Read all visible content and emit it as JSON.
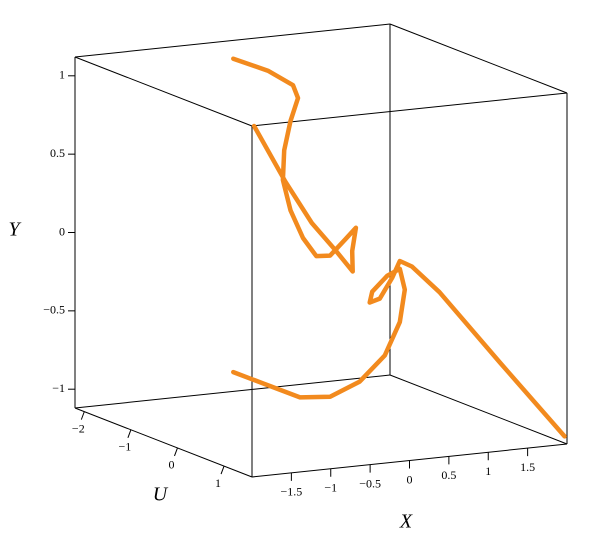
{
  "chart_data": {
    "type": "line3d",
    "xlabel": "X",
    "ylabel": "Y",
    "zlabel": "U",
    "color": "#f28a1e",
    "x": [
      -0.7,
      -0.42,
      -0.22,
      -0.18,
      -0.24,
      -0.29,
      -0.3,
      -0.24,
      -0.14,
      -0.03,
      0.08,
      0.2,
      0.29,
      0.26,
      0.26,
      0.12,
      -0.07,
      -0.28,
      -0.53,
      null,
      -0.7,
      -0.41,
      -0.16,
      0.08,
      0.32,
      0.52,
      0.64,
      0.68,
      0.64,
      0.54,
      0.42,
      0.4,
      0.48,
      0.58,
      0.64,
      0.74,
      0.96,
      1.45,
      1.97
    ],
    "y": [
      1.18,
      1.12,
      1.04,
      0.96,
      0.81,
      0.62,
      0.43,
      0.24,
      0.07,
      -0.04,
      -0.03,
      0.08,
      0.16,
      0.01,
      -0.12,
      0.01,
      0.17,
      0.42,
      0.76,
      null,
      -0.82,
      -0.89,
      -0.95,
      -0.93,
      -0.82,
      -0.64,
      -0.42,
      -0.21,
      -0.08,
      -0.13,
      -0.24,
      -0.31,
      -0.28,
      -0.14,
      -0.03,
      -0.06,
      -0.21,
      -0.63,
      -1.07
    ],
    "z": [
      -1.0,
      -0.73,
      -0.53,
      -0.49,
      -0.55,
      -0.6,
      -0.61,
      -0.55,
      -0.45,
      -0.35,
      -0.24,
      -0.12,
      -0.04,
      -0.07,
      -0.06,
      -0.2,
      -0.38,
      -0.59,
      -0.84,
      null,
      -1.0,
      -0.71,
      -0.48,
      -0.24,
      -0.01,
      0.19,
      0.31,
      0.35,
      0.31,
      0.21,
      0.09,
      0.07,
      0.15,
      0.25,
      0.31,
      0.4,
      0.62,
      1.09,
      1.6
    ],
    "xlim": [
      -2,
      2
    ],
    "ylim": [
      -1.12,
      1.12
    ],
    "zlim": [
      -2.2,
      1.6
    ],
    "xticks": [
      {
        "value": -1.5,
        "label": "−1.5"
      },
      {
        "value": -1,
        "label": "−1"
      },
      {
        "value": -0.5,
        "label": "−0.5"
      },
      0,
      0.5,
      1,
      1.5
    ],
    "yticks": [
      {
        "value": -1,
        "label": "−1"
      },
      {
        "value": -0.5,
        "label": "−0.5"
      },
      0,
      0.5,
      1
    ],
    "zticks": [
      {
        "value": -2,
        "label": "−2"
      },
      {
        "value": -1,
        "label": "−1"
      },
      0,
      1
    ]
  }
}
